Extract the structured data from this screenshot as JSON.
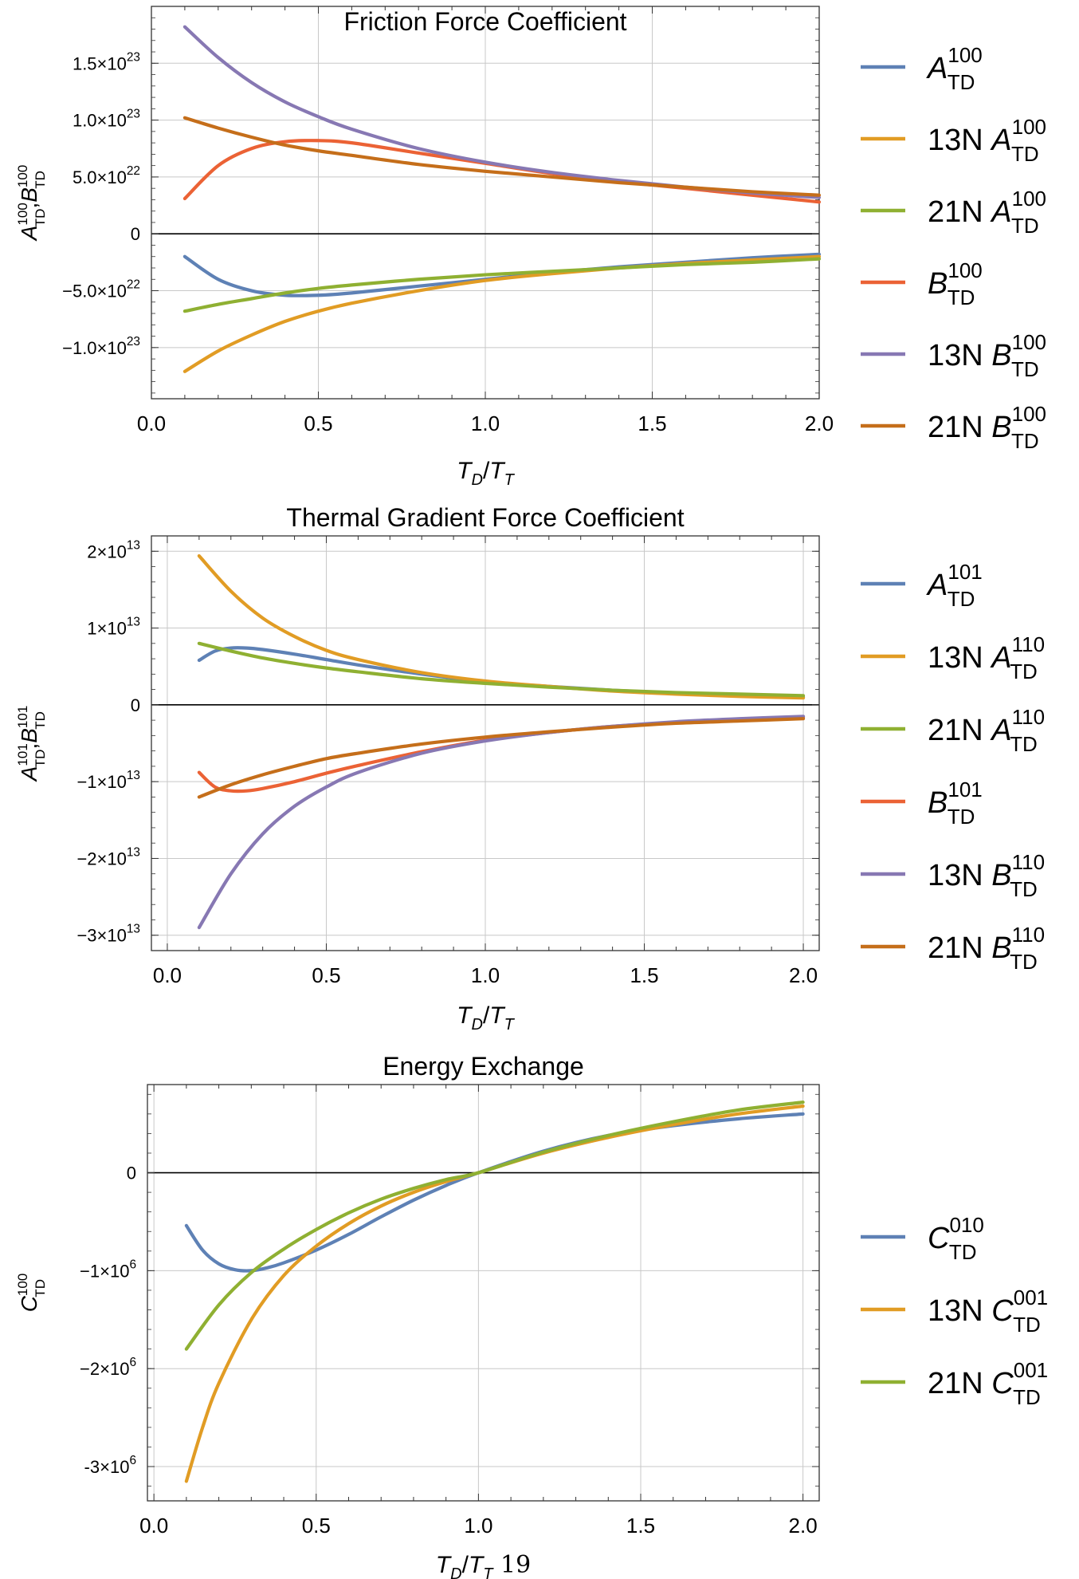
{
  "page_number": "19",
  "chart_data": [
    {
      "type": "line",
      "title": "Friction Force Coefficient",
      "ylabel": {
        "main": "A",
        "sup": "100",
        "sub": "TD",
        "sep": ",",
        "main2": "B",
        "sup2": "100",
        "sub2": "TD"
      },
      "xlabel": {
        "a": "T",
        "a_sub": "D",
        "slash": "/",
        "b": "T",
        "b_sub": "T"
      },
      "xlim": [
        0,
        2
      ],
      "ylim": [
        -1.45e+23,
        2e+23
      ],
      "x_ticks": [
        "0.0",
        "0.5",
        "1.0",
        "1.5",
        "2.0"
      ],
      "y_ticks": [
        {
          "value": 1.5e+23,
          "mant": "1.5",
          "times": "×10",
          "exp": "23"
        },
        {
          "value": 1e+23,
          "mant": "1.0",
          "times": "×10",
          "exp": "23"
        },
        {
          "value": 5e+22,
          "mant": "5.0",
          "times": "×10",
          "exp": "22"
        },
        {
          "value": 0,
          "mant": "0",
          "times": "",
          "exp": ""
        },
        {
          "value": -5e+22,
          "mant": "−5.0",
          "times": "×10",
          "exp": "22"
        },
        {
          "value": -1e+23,
          "mant": "−1.0",
          "times": "×10",
          "exp": "23"
        }
      ],
      "grid": true,
      "legend_position": "right",
      "series": [
        {
          "prefix": "",
          "sym": "A",
          "sup": "100",
          "sub": "TD",
          "color": "#5E81B5",
          "x": [
            0.1,
            0.2,
            0.3,
            0.4,
            0.5,
            0.6,
            0.8,
            1.0,
            1.2,
            1.4,
            1.6,
            1.8,
            2.0
          ],
          "y": [
            -2e+22,
            -4e+22,
            -5e+22,
            -5.4e+22,
            -5.4e+22,
            -5.2e+22,
            -4.6e+22,
            -4e+22,
            -3.4e+22,
            -2.9e+22,
            -2.5e+22,
            -2.1e+22,
            -1.8e+22
          ]
        },
        {
          "prefix": "13N ",
          "sym": "A",
          "sup": "100",
          "sub": "TD",
          "color": "#E19C24",
          "x": [
            0.1,
            0.2,
            0.3,
            0.4,
            0.5,
            0.6,
            0.8,
            1.0,
            1.2,
            1.4,
            1.6,
            1.8,
            2.0
          ],
          "y": [
            -1.21e+23,
            -1.03e+23,
            -8.9e+22,
            -7.7e+22,
            -6.8e+22,
            -6.1e+22,
            -5e+22,
            -4.1e+22,
            -3.5e+22,
            -3e+22,
            -2.6e+22,
            -2.3e+22,
            -2e+22
          ]
        },
        {
          "prefix": "21N ",
          "sym": "A",
          "sup": "100",
          "sub": "TD",
          "color": "#8FB032",
          "x": [
            0.1,
            0.2,
            0.3,
            0.4,
            0.5,
            0.6,
            0.8,
            1.0,
            1.2,
            1.4,
            1.6,
            1.8,
            2.0
          ],
          "y": [
            -6.8e+22,
            -6.2e+22,
            -5.7e+22,
            -5.2e+22,
            -4.8e+22,
            -4.5e+22,
            -4e+22,
            -3.6e+22,
            -3.3e+22,
            -3e+22,
            -2.7e+22,
            -2.5e+22,
            -2.2e+22
          ]
        },
        {
          "prefix": "",
          "sym": "B",
          "sup": "100",
          "sub": "TD",
          "color": "#EB6235",
          "x": [
            0.1,
            0.2,
            0.3,
            0.4,
            0.5,
            0.6,
            0.8,
            1.0,
            1.2,
            1.4,
            1.6,
            1.8,
            2.0
          ],
          "y": [
            3.1e+22,
            6e+22,
            7.5e+22,
            8.1e+22,
            8.2e+22,
            8e+22,
            7.1e+22,
            6.2e+22,
            5.3e+22,
            4.6e+22,
            4e+22,
            3.4e+22,
            2.8e+22
          ]
        },
        {
          "prefix": "13N ",
          "sym": "B",
          "sup": "100",
          "sub": "TD",
          "color": "#8778B3",
          "x": [
            0.1,
            0.2,
            0.3,
            0.4,
            0.5,
            0.6,
            0.8,
            1.0,
            1.2,
            1.4,
            1.6,
            1.8,
            2.0
          ],
          "y": [
            1.82e+23,
            1.55e+23,
            1.33e+23,
            1.16e+23,
            1.03e+23,
            9.2e+22,
            7.5e+22,
            6.3e+22,
            5.4e+22,
            4.7e+22,
            4.1e+22,
            3.6e+22,
            3.2e+22
          ]
        },
        {
          "prefix": "21N ",
          "sym": "B",
          "sup": "100",
          "sub": "TD",
          "color": "#C56E1A",
          "x": [
            0.1,
            0.2,
            0.3,
            0.4,
            0.5,
            0.6,
            0.8,
            1.0,
            1.2,
            1.4,
            1.6,
            1.8,
            2.0
          ],
          "y": [
            1.02e+23,
            9.3e+22,
            8.5e+22,
            7.8e+22,
            7.3e+22,
            6.9e+22,
            6.1e+22,
            5.5e+22,
            5e+22,
            4.5e+22,
            4.1e+22,
            3.7e+22,
            3.4e+22
          ]
        }
      ]
    },
    {
      "type": "line",
      "title": "Thermal Gradient Force Coefficient",
      "ylabel": {
        "main": "A",
        "sup": "101",
        "sub": "TD",
        "sep": ",",
        "main2": "B",
        "sup2": "101",
        "sub2": "TD"
      },
      "xlabel": {
        "a": "T",
        "a_sub": "D",
        "slash": "/",
        "b": "T",
        "b_sub": "T"
      },
      "xlim": [
        -0.05,
        2.05
      ],
      "ylim": [
        -32000000000000.0,
        22000000000000.0
      ],
      "x_ticks": [
        "0.0",
        "0.5",
        "1.0",
        "1.5",
        "2.0"
      ],
      "y_ticks": [
        {
          "value": 20000000000000.0,
          "mant": "2",
          "times": "×10",
          "exp": "13"
        },
        {
          "value": 10000000000000.0,
          "mant": "1",
          "times": "×10",
          "exp": "13"
        },
        {
          "value": 0,
          "mant": "0",
          "times": "",
          "exp": ""
        },
        {
          "value": -10000000000000.0,
          "mant": "−1",
          "times": "×10",
          "exp": "13"
        },
        {
          "value": -20000000000000.0,
          "mant": "−2",
          "times": "×10",
          "exp": "13"
        },
        {
          "value": -30000000000000.0,
          "mant": "−3",
          "times": "×10",
          "exp": "13"
        }
      ],
      "grid": true,
      "legend_position": "right",
      "series": [
        {
          "prefix": "",
          "sym": "A",
          "sup": "101",
          "sub": "TD",
          "color": "#5E81B5",
          "x": [
            0.1,
            0.15,
            0.2,
            0.25,
            0.3,
            0.4,
            0.5,
            0.6,
            0.8,
            1.0,
            1.2,
            1.4,
            1.6,
            1.8,
            2.0
          ],
          "y": [
            5800000000000.0,
            7000000000000.0,
            7400000000000.0,
            7400000000000.0,
            7200000000000.0,
            6600000000000.0,
            5900000000000.0,
            5200000000000.0,
            4000000000000.0,
            3000000000000.0,
            2400000000000.0,
            1900000000000.0,
            1500000000000.0,
            1200000000000.0,
            1000000000000.0
          ]
        },
        {
          "prefix": "13N ",
          "sym": "A",
          "sup": "110",
          "sub": "TD",
          "color": "#E19C24",
          "x": [
            0.1,
            0.2,
            0.3,
            0.4,
            0.5,
            0.6,
            0.8,
            1.0,
            1.2,
            1.4,
            1.6,
            1.8,
            2.0
          ],
          "y": [
            19400000000000.0,
            14800000000000.0,
            11300000000000.0,
            8900000000000.0,
            7100000000000.0,
            5900000000000.0,
            4200000000000.0,
            3100000000000.0,
            2400000000000.0,
            1800000000000.0,
            1400000000000.0,
            1100000000000.0,
            900000000000.0
          ]
        },
        {
          "prefix": "21N ",
          "sym": "A",
          "sup": "110",
          "sub": "TD",
          "color": "#8FB032",
          "x": [
            0.1,
            0.2,
            0.3,
            0.4,
            0.5,
            0.6,
            0.8,
            1.0,
            1.2,
            1.4,
            1.6,
            1.8,
            2.0
          ],
          "y": [
            8000000000000.0,
            7000000000000.0,
            6100000000000.0,
            5400000000000.0,
            4800000000000.0,
            4300000000000.0,
            3400000000000.0,
            2800000000000.0,
            2300000000000.0,
            1900000000000.0,
            1600000000000.0,
            1400000000000.0,
            1200000000000.0
          ]
        },
        {
          "prefix": "",
          "sym": "B",
          "sup": "101",
          "sub": "TD",
          "color": "#EB6235",
          "x": [
            0.1,
            0.15,
            0.2,
            0.25,
            0.3,
            0.4,
            0.5,
            0.6,
            0.8,
            1.0,
            1.2,
            1.4,
            1.6,
            1.8,
            2.0
          ],
          "y": [
            -8800000000000.0,
            -10700000000000.0,
            -11200000000000.0,
            -11200000000000.0,
            -10900000000000.0,
            -10000000000000.0,
            -8900000000000.0,
            -7900000000000.0,
            -6100000000000.0,
            -4600000000000.0,
            -3600000000000.0,
            -2800000000000.0,
            -2300000000000.0,
            -1900000000000.0,
            -1600000000000.0
          ]
        },
        {
          "prefix": "13N ",
          "sym": "B",
          "sup": "110",
          "sub": "TD",
          "color": "#8778B3",
          "x": [
            0.1,
            0.2,
            0.3,
            0.4,
            0.5,
            0.6,
            0.8,
            1.0,
            1.2,
            1.4,
            1.6,
            1.8,
            2.0
          ],
          "y": [
            -29000000000000.0,
            -22000000000000.0,
            -16800000000000.0,
            -13200000000000.0,
            -10700000000000.0,
            -8800000000000.0,
            -6300000000000.0,
            -4700000000000.0,
            -3600000000000.0,
            -2800000000000.0,
            -2200000000000.0,
            -1800000000000.0,
            -1500000000000.0
          ]
        },
        {
          "prefix": "21N ",
          "sym": "B",
          "sup": "110",
          "sub": "TD",
          "color": "#C56E1A",
          "x": [
            0.1,
            0.2,
            0.3,
            0.4,
            0.5,
            0.6,
            0.8,
            1.0,
            1.2,
            1.4,
            1.6,
            1.8,
            2.0
          ],
          "y": [
            -12000000000000.0,
            -10400000000000.0,
            -9100000000000.0,
            -8000000000000.0,
            -7000000000000.0,
            -6300000000000.0,
            -5100000000000.0,
            -4200000000000.0,
            -3500000000000.0,
            -2900000000000.0,
            -2400000000000.0,
            -2100000000000.0,
            -1800000000000.0
          ]
        }
      ]
    },
    {
      "type": "line",
      "title": "Energy Exchange",
      "ylabel": {
        "main": "C",
        "sup": "100",
        "sub": "TD",
        "sep": "",
        "main2": "",
        "sup2": "",
        "sub2": ""
      },
      "xlabel": {
        "a": "T",
        "a_sub": "D",
        "slash": "/",
        "b": "T",
        "b_sub": "T"
      },
      "xlim": [
        -0.02,
        2.05
      ],
      "ylim": [
        -3350000.0,
        900000.0
      ],
      "x_ticks": [
        "0.0",
        "0.5",
        "1.0",
        "1.5",
        "2.0"
      ],
      "y_ticks": [
        {
          "value": 0,
          "mant": "0",
          "times": "",
          "exp": ""
        },
        {
          "value": -1000000.0,
          "mant": "−1",
          "times": "×10",
          "exp": "6"
        },
        {
          "value": -2000000.0,
          "mant": "−2",
          "times": "×10",
          "exp": "6"
        },
        {
          "value": -3000000.0,
          "mant": "-3",
          "times": "×10",
          "exp": "6"
        }
      ],
      "grid": true,
      "legend_position": "right",
      "series": [
        {
          "prefix": "",
          "sym": "C",
          "sup": "010",
          "sub": "TD",
          "color": "#5E81B5",
          "x": [
            0.1,
            0.15,
            0.2,
            0.25,
            0.3,
            0.35,
            0.4,
            0.5,
            0.6,
            0.7,
            0.8,
            0.9,
            1.0,
            1.2,
            1.4,
            1.6,
            1.8,
            2.0
          ],
          "y": [
            -540000.0,
            -790000.0,
            -930000.0,
            -990000.0,
            -1000000.0,
            -970000.0,
            -920000.0,
            -790000.0,
            -630000.0,
            -450000.0,
            -280000.0,
            -130000.0,
            0,
            220000.0,
            380000.0,
            480000.0,
            550000.0,
            600000.0
          ]
        },
        {
          "prefix": "13N ",
          "sym": "C",
          "sup": "001",
          "sub": "TD",
          "color": "#E19C24",
          "x": [
            0.1,
            0.15,
            0.2,
            0.3,
            0.4,
            0.5,
            0.6,
            0.7,
            0.8,
            0.9,
            1.0,
            1.2,
            1.4,
            1.6,
            1.8,
            2.0
          ],
          "y": [
            -3150000.0,
            -2600000.0,
            -2150000.0,
            -1500000.0,
            -1050000.0,
            -750000.0,
            -520000.0,
            -340000.0,
            -200000.0,
            -90000.0,
            0,
            200000.0,
            360000.0,
            490000.0,
            600000.0,
            680000.0
          ]
        },
        {
          "prefix": "21N ",
          "sym": "C",
          "sup": "001",
          "sub": "TD",
          "color": "#8FB032",
          "x": [
            0.1,
            0.2,
            0.3,
            0.4,
            0.5,
            0.6,
            0.7,
            0.8,
            0.9,
            1.0,
            1.2,
            1.4,
            1.6,
            1.8,
            2.0
          ],
          "y": [
            -1800000.0,
            -1350000.0,
            -1020000.0,
            -780000.0,
            -580000.0,
            -410000.0,
            -270000.0,
            -160000.0,
            -70000.0,
            0,
            210000.0,
            380000.0,
            520000.0,
            640000.0,
            720000.0
          ]
        }
      ]
    }
  ]
}
